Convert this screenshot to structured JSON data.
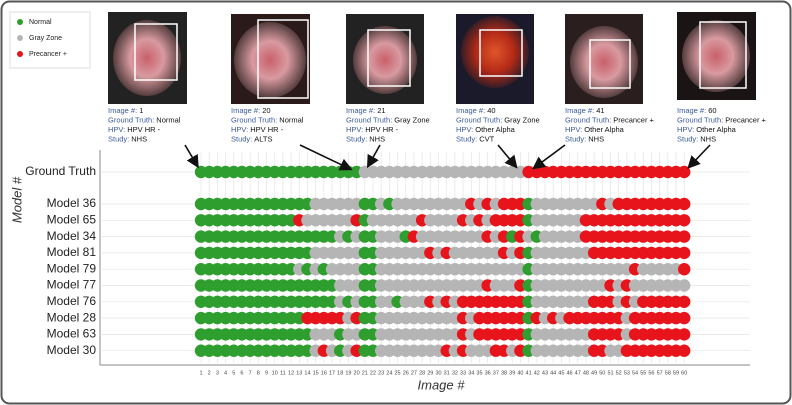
{
  "chart_data": {
    "type": "dot-matrix",
    "x_label": "Image #",
    "y_label": "Model #",
    "legend": [
      {
        "name": "Normal",
        "color": "#2e9e2e"
      },
      {
        "name": "Gray Zone",
        "color": "#b5b5b5"
      },
      {
        "name": "Precancer +",
        "color": "#e8141c"
      }
    ],
    "categories": [
      1,
      2,
      3,
      4,
      5,
      6,
      7,
      8,
      9,
      10,
      11,
      12,
      13,
      14,
      15,
      16,
      17,
      18,
      19,
      20,
      21,
      22,
      23,
      24,
      25,
      26,
      27,
      28,
      29,
      30,
      31,
      32,
      33,
      34,
      35,
      36,
      37,
      38,
      39,
      40,
      41,
      42,
      43,
      44,
      45,
      46,
      47,
      48,
      49,
      50,
      51,
      52,
      53,
      54,
      55,
      56,
      57,
      58,
      59,
      60
    ],
    "info_labels": [
      "Image #:",
      "Ground Truth:",
      "HPV:",
      "Study:"
    ],
    "images": [
      {
        "image": "1",
        "ground_truth": "Normal",
        "hpv": "HPV HR -",
        "study": "NHS"
      },
      {
        "image": "20",
        "ground_truth": "Normal",
        "hpv": "HPV HR -",
        "study": "ALTS"
      },
      {
        "image": "21",
        "ground_truth": "Gray Zone",
        "hpv": "HPV HR -",
        "study": "NHS"
      },
      {
        "image": "40",
        "ground_truth": "Gray Zone",
        "hpv": "Other Alpha",
        "study": "CVT"
      },
      {
        "image": "41",
        "ground_truth": "Precancer +",
        "hpv": "Other Alpha",
        "study": "NHS"
      },
      {
        "image": "60",
        "ground_truth": "Precancer +",
        "hpv": "Other Alpha",
        "study": "NHS"
      }
    ],
    "rows": [
      {
        "name": "Ground Truth",
        "values": [
          "Normal",
          "Normal",
          "Normal",
          "Normal",
          "Normal",
          "Normal",
          "Normal",
          "Normal",
          "Normal",
          "Normal",
          "Normal",
          "Normal",
          "Normal",
          "Normal",
          "Normal",
          "Normal",
          "Normal",
          "Normal",
          "Normal",
          "Normal",
          "Gray Zone",
          "Gray Zone",
          "Gray Zone",
          "Gray Zone",
          "Gray Zone",
          "Gray Zone",
          "Gray Zone",
          "Gray Zone",
          "Gray Zone",
          "Gray Zone",
          "Gray Zone",
          "Gray Zone",
          "Gray Zone",
          "Gray Zone",
          "Gray Zone",
          "Gray Zone",
          "Gray Zone",
          "Gray Zone",
          "Gray Zone",
          "Gray Zone",
          "Precancer +",
          "Precancer +",
          "Precancer +",
          "Precancer +",
          "Precancer +",
          "Precancer +",
          "Precancer +",
          "Precancer +",
          "Precancer +",
          "Precancer +",
          "Precancer +",
          "Precancer +",
          "Precancer +",
          "Precancer +",
          "Precancer +",
          "Precancer +",
          "Precancer +",
          "Precancer +",
          "Precancer +",
          "Precancer +"
        ]
      },
      {
        "name": "Model 36",
        "values": [
          "Normal",
          "Normal",
          "Normal",
          "Normal",
          "Normal",
          "Normal",
          "Normal",
          "Normal",
          "Normal",
          "Normal",
          "Normal",
          "Normal",
          "Normal",
          "Normal",
          "Gray Zone",
          "Gray Zone",
          "Gray Zone",
          "Gray Zone",
          "Gray Zone",
          "Gray Zone",
          "Normal",
          "Normal",
          "Gray Zone",
          "Normal",
          "Gray Zone",
          "Gray Zone",
          "Gray Zone",
          "Gray Zone",
          "Gray Zone",
          "Gray Zone",
          "Gray Zone",
          "Gray Zone",
          "Gray Zone",
          "Precancer +",
          "Gray Zone",
          "Precancer +",
          "Gray Zone",
          "Precancer +",
          "Precancer +",
          "Precancer +",
          "Normal",
          "Gray Zone",
          "Gray Zone",
          "Gray Zone",
          "Gray Zone",
          "Gray Zone",
          "Gray Zone",
          "Gray Zone",
          "Gray Zone",
          "Precancer +",
          "Gray Zone",
          "Precancer +",
          "Precancer +",
          "Precancer +",
          "Precancer +",
          "Precancer +",
          "Precancer +",
          "Precancer +",
          "Precancer +",
          "Precancer +"
        ]
      },
      {
        "name": "Model 65",
        "values": [
          "Normal",
          "Normal",
          "Normal",
          "Normal",
          "Normal",
          "Normal",
          "Normal",
          "Normal",
          "Normal",
          "Normal",
          "Normal",
          "Normal",
          "Precancer +",
          "Gray Zone",
          "Gray Zone",
          "Gray Zone",
          "Gray Zone",
          "Gray Zone",
          "Gray Zone",
          "Precancer +",
          "Normal",
          "Gray Zone",
          "Gray Zone",
          "Gray Zone",
          "Gray Zone",
          "Gray Zone",
          "Gray Zone",
          "Precancer +",
          "Gray Zone",
          "Gray Zone",
          "Gray Zone",
          "Gray Zone",
          "Precancer +",
          "Gray Zone",
          "Precancer +",
          "Gray Zone",
          "Precancer +",
          "Precancer +",
          "Precancer +",
          "Precancer +",
          "Normal",
          "Gray Zone",
          "Gray Zone",
          "Gray Zone",
          "Gray Zone",
          "Gray Zone",
          "Gray Zone",
          "Precancer +",
          "Precancer +",
          "Precancer +",
          "Precancer +",
          "Precancer +",
          "Precancer +",
          "Precancer +",
          "Precancer +",
          "Precancer +",
          "Precancer +",
          "Precancer +",
          "Precancer +",
          "Precancer +"
        ]
      },
      {
        "name": "Model 34",
        "values": [
          "Normal",
          "Normal",
          "Normal",
          "Normal",
          "Normal",
          "Normal",
          "Normal",
          "Normal",
          "Normal",
          "Normal",
          "Normal",
          "Normal",
          "Normal",
          "Normal",
          "Normal",
          "Normal",
          "Normal",
          "Gray Zone",
          "Normal",
          "Gray Zone",
          "Normal",
          "Normal",
          "Gray Zone",
          "Gray Zone",
          "Gray Zone",
          "Normal",
          "Precancer +",
          "Gray Zone",
          "Gray Zone",
          "Gray Zone",
          "Gray Zone",
          "Gray Zone",
          "Gray Zone",
          "Gray Zone",
          "Gray Zone",
          "Precancer +",
          "Gray Zone",
          "Precancer +",
          "Normal",
          "Precancer +",
          "Gray Zone",
          "Normal",
          "Gray Zone",
          "Gray Zone",
          "Gray Zone",
          "Gray Zone",
          "Gray Zone",
          "Precancer +",
          "Precancer +",
          "Precancer +",
          "Precancer +",
          "Precancer +",
          "Precancer +",
          "Precancer +",
          "Precancer +",
          "Precancer +",
          "Precancer +",
          "Precancer +",
          "Precancer +",
          "Precancer +"
        ]
      },
      {
        "name": "Model 81",
        "values": [
          "Normal",
          "Normal",
          "Normal",
          "Normal",
          "Normal",
          "Normal",
          "Normal",
          "Normal",
          "Normal",
          "Normal",
          "Normal",
          "Normal",
          "Normal",
          "Normal",
          "Gray Zone",
          "Gray Zone",
          "Gray Zone",
          "Gray Zone",
          "Gray Zone",
          "Gray Zone",
          "Normal",
          "Normal",
          "Gray Zone",
          "Gray Zone",
          "Gray Zone",
          "Gray Zone",
          "Gray Zone",
          "Gray Zone",
          "Precancer +",
          "Gray Zone",
          "Precancer +",
          "Gray Zone",
          "Gray Zone",
          "Gray Zone",
          "Gray Zone",
          "Gray Zone",
          "Gray Zone",
          "Precancer +",
          "Gray Zone",
          "Precancer +",
          "Normal",
          "Gray Zone",
          "Gray Zone",
          "Gray Zone",
          "Gray Zone",
          "Gray Zone",
          "Gray Zone",
          "Gray Zone",
          "Precancer +",
          "Precancer +",
          "Precancer +",
          "Precancer +",
          "Precancer +",
          "Precancer +",
          "Precancer +",
          "Precancer +",
          "Precancer +",
          "Precancer +",
          "Precancer +",
          "Precancer +"
        ]
      },
      {
        "name": "Model 79",
        "values": [
          "Normal",
          "Normal",
          "Normal",
          "Normal",
          "Normal",
          "Normal",
          "Normal",
          "Normal",
          "Normal",
          "Normal",
          "Normal",
          "Normal",
          "Gray Zone",
          "Normal",
          "Gray Zone",
          "Normal",
          "Gray Zone",
          "Gray Zone",
          "Gray Zone",
          "Gray Zone",
          "Normal",
          "Normal",
          "Gray Zone",
          "Gray Zone",
          "Gray Zone",
          "Gray Zone",
          "Gray Zone",
          "Gray Zone",
          "Gray Zone",
          "Gray Zone",
          "Gray Zone",
          "Gray Zone",
          "Gray Zone",
          "Gray Zone",
          "Gray Zone",
          "Gray Zone",
          "Gray Zone",
          "Gray Zone",
          "Gray Zone",
          "Gray Zone",
          "Normal",
          "Gray Zone",
          "Gray Zone",
          "Gray Zone",
          "Gray Zone",
          "Gray Zone",
          "Gray Zone",
          "Gray Zone",
          "Gray Zone",
          "Gray Zone",
          "Gray Zone",
          "Gray Zone",
          "Gray Zone",
          "Precancer +",
          "Gray Zone",
          "Gray Zone",
          "Gray Zone",
          "Gray Zone",
          "Gray Zone",
          "Precancer +"
        ]
      },
      {
        "name": "Model 77",
        "values": [
          "Normal",
          "Normal",
          "Normal",
          "Normal",
          "Normal",
          "Normal",
          "Normal",
          "Normal",
          "Normal",
          "Normal",
          "Normal",
          "Normal",
          "Normal",
          "Normal",
          "Normal",
          "Normal",
          "Normal",
          "Gray Zone",
          "Gray Zone",
          "Gray Zone",
          "Normal",
          "Normal",
          "Gray Zone",
          "Gray Zone",
          "Gray Zone",
          "Gray Zone",
          "Gray Zone",
          "Gray Zone",
          "Gray Zone",
          "Gray Zone",
          "Gray Zone",
          "Gray Zone",
          "Gray Zone",
          "Gray Zone",
          "Gray Zone",
          "Precancer +",
          "Gray Zone",
          "Gray Zone",
          "Gray Zone",
          "Precancer +",
          "Normal",
          "Gray Zone",
          "Gray Zone",
          "Gray Zone",
          "Gray Zone",
          "Gray Zone",
          "Gray Zone",
          "Gray Zone",
          "Gray Zone",
          "Gray Zone",
          "Precancer +",
          "Gray Zone",
          "Precancer +",
          "Gray Zone",
          "Gray Zone",
          "Gray Zone",
          "Gray Zone",
          "Gray Zone",
          "Gray Zone",
          "Gray Zone"
        ]
      },
      {
        "name": "Model 76",
        "values": [
          "Normal",
          "Normal",
          "Normal",
          "Normal",
          "Normal",
          "Normal",
          "Normal",
          "Normal",
          "Normal",
          "Normal",
          "Normal",
          "Normal",
          "Normal",
          "Normal",
          "Normal",
          "Normal",
          "Normal",
          "Gray Zone",
          "Normal",
          "Gray Zone",
          "Normal",
          "Normal",
          "Gray Zone",
          "Gray Zone",
          "Normal",
          "Gray Zone",
          "Gray Zone",
          "Gray Zone",
          "Precancer +",
          "Gray Zone",
          "Precancer +",
          "Gray Zone",
          "Precancer +",
          "Precancer +",
          "Precancer +",
          "Precancer +",
          "Precancer +",
          "Precancer +",
          "Precancer +",
          "Precancer +",
          "Normal",
          "Gray Zone",
          "Gray Zone",
          "Gray Zone",
          "Gray Zone",
          "Gray Zone",
          "Gray Zone",
          "Gray Zone",
          "Precancer +",
          "Precancer +",
          "Precancer +",
          "Gray Zone",
          "Precancer +",
          "Gray Zone",
          "Precancer +",
          "Precancer +",
          "Precancer +",
          "Precancer +",
          "Precancer +",
          "Precancer +"
        ]
      },
      {
        "name": "Model 28",
        "values": [
          "Normal",
          "Normal",
          "Normal",
          "Normal",
          "Normal",
          "Normal",
          "Normal",
          "Normal",
          "Normal",
          "Normal",
          "Normal",
          "Normal",
          "Normal",
          "Precancer +",
          "Precancer +",
          "Precancer +",
          "Precancer +",
          "Precancer +",
          "Gray Zone",
          "Precancer +",
          "Normal",
          "Normal",
          "Gray Zone",
          "Gray Zone",
          "Gray Zone",
          "Gray Zone",
          "Gray Zone",
          "Gray Zone",
          "Gray Zone",
          "Gray Zone",
          "Gray Zone",
          "Gray Zone",
          "Precancer +",
          "Gray Zone",
          "Precancer +",
          "Precancer +",
          "Precancer +",
          "Precancer +",
          "Precancer +",
          "Precancer +",
          "Normal",
          "Precancer +",
          "Gray Zone",
          "Precancer +",
          "Gray Zone",
          "Precancer +",
          "Precancer +",
          "Precancer +",
          "Precancer +",
          "Precancer +",
          "Precancer +",
          "Precancer +",
          "Gray Zone",
          "Precancer +",
          "Precancer +",
          "Precancer +",
          "Precancer +",
          "Precancer +",
          "Precancer +",
          "Precancer +"
        ]
      },
      {
        "name": "Model 63",
        "values": [
          "Normal",
          "Normal",
          "Normal",
          "Normal",
          "Normal",
          "Normal",
          "Normal",
          "Normal",
          "Normal",
          "Normal",
          "Normal",
          "Normal",
          "Normal",
          "Normal",
          "Gray Zone",
          "Gray Zone",
          "Gray Zone",
          "Normal",
          "Gray Zone",
          "Gray Zone",
          "Normal",
          "Normal",
          "Gray Zone",
          "Gray Zone",
          "Gray Zone",
          "Gray Zone",
          "Gray Zone",
          "Gray Zone",
          "Gray Zone",
          "Gray Zone",
          "Gray Zone",
          "Gray Zone",
          "Precancer +",
          "Gray Zone",
          "Precancer +",
          "Precancer +",
          "Precancer +",
          "Precancer +",
          "Precancer +",
          "Precancer +",
          "Normal",
          "Gray Zone",
          "Gray Zone",
          "Gray Zone",
          "Gray Zone",
          "Gray Zone",
          "Gray Zone",
          "Gray Zone",
          "Precancer +",
          "Precancer +",
          "Precancer +",
          "Precancer +",
          "Gray Zone",
          "Precancer +",
          "Precancer +",
          "Precancer +",
          "Precancer +",
          "Precancer +",
          "Precancer +",
          "Precancer +"
        ]
      },
      {
        "name": "Model 30",
        "values": [
          "Normal",
          "Normal",
          "Normal",
          "Normal",
          "Normal",
          "Normal",
          "Normal",
          "Normal",
          "Normal",
          "Normal",
          "Normal",
          "Normal",
          "Normal",
          "Normal",
          "Gray Zone",
          "Precancer +",
          "Gray Zone",
          "Normal",
          "Gray Zone",
          "Precancer +",
          "Normal",
          "Normal",
          "Gray Zone",
          "Gray Zone",
          "Gray Zone",
          "Gray Zone",
          "Gray Zone",
          "Gray Zone",
          "Gray Zone",
          "Gray Zone",
          "Precancer +",
          "Gray Zone",
          "Precancer +",
          "Gray Zone",
          "Gray Zone",
          "Gray Zone",
          "Precancer +",
          "Precancer +",
          "Gray Zone",
          "Precancer +",
          "Normal",
          "Gray Zone",
          "Gray Zone",
          "Gray Zone",
          "Gray Zone",
          "Gray Zone",
          "Gray Zone",
          "Gray Zone",
          "Precancer +",
          "Precancer +",
          "Gray Zone",
          "Gray Zone",
          "Precancer +",
          "Precancer +",
          "Precancer +",
          "Precancer +",
          "Precancer +",
          "Precancer +",
          "Precancer +",
          "Precancer +"
        ]
      }
    ]
  }
}
